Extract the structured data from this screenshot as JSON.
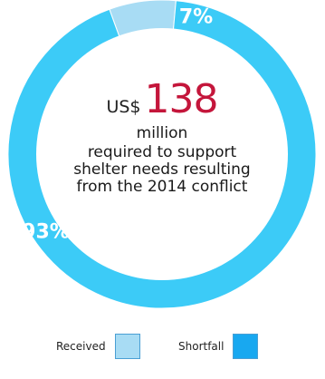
{
  "chart_data": {
    "type": "pie",
    "title": "",
    "slices": [
      {
        "name": "Received",
        "value": 7,
        "label": "7%",
        "color": "#a8dcf4"
      },
      {
        "name": "Shortfall",
        "value": 93,
        "label": "93%",
        "color": "#3ccbf7"
      }
    ],
    "center": {
      "currency": "US$",
      "amount": "138",
      "unit": "million",
      "description": "required to support shelter needs resulting from the 2014 conflict",
      "amount_color": "#c4163b"
    },
    "legend": {
      "placement": "bottom",
      "items": [
        {
          "label": "Received",
          "color": "#a8dcf4"
        },
        {
          "label": "Shortfall",
          "color": "#18a8f0"
        }
      ]
    }
  }
}
